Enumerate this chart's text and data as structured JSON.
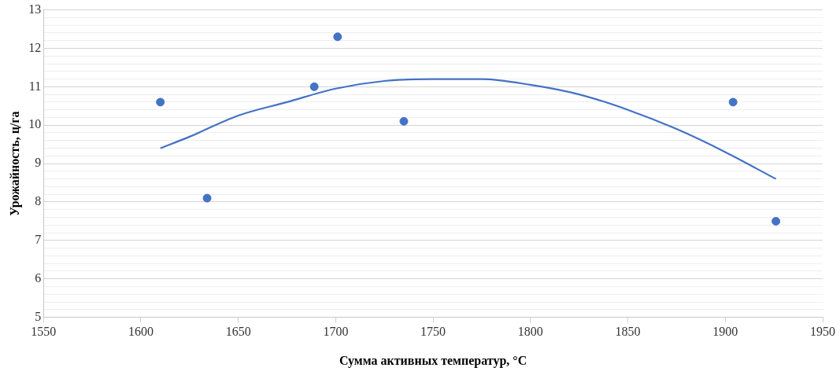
{
  "chart_data": {
    "type": "scatter",
    "xlabel": "Сумма активных температур, °C",
    "ylabel": "Урожайность, ц/га",
    "xlim": [
      1550,
      1950
    ],
    "xticks": [
      1550,
      1600,
      1650,
      1700,
      1750,
      1800,
      1850,
      1900,
      1950
    ],
    "ylim": [
      5,
      13
    ],
    "yticks": [
      5,
      {
        "value": 5.2,
        "label": null
      },
      {
        "value": 5.4,
        "label": null
      },
      {
        "value": 5.6,
        "label": null
      },
      {
        "value": 5.8,
        "label": null
      },
      6,
      {
        "value": 6.2,
        "label": null
      },
      {
        "value": 6.4,
        "label": null
      },
      {
        "value": 6.6,
        "label": null
      },
      {
        "value": 6.8,
        "label": null
      },
      7,
      {
        "value": 7.2,
        "label": null
      },
      {
        "value": 7.4,
        "label": null
      },
      {
        "value": 7.6,
        "label": null
      },
      {
        "value": 7.8,
        "label": null
      },
      8,
      {
        "value": 8.2,
        "label": null
      },
      {
        "value": 8.4,
        "label": null
      },
      {
        "value": 8.6,
        "label": null
      },
      {
        "value": 8.8,
        "label": null
      },
      9,
      {
        "value": 9.2,
        "label": null
      },
      {
        "value": 9.4,
        "label": null
      },
      {
        "value": 9.6,
        "label": null
      },
      {
        "value": 9.8,
        "label": null
      },
      10,
      {
        "value": 10.2,
        "label": null
      },
      {
        "value": 10.4,
        "label": null
      },
      {
        "value": 10.6,
        "label": null
      },
      {
        "value": 10.8,
        "label": null
      },
      11,
      {
        "value": 11.2,
        "label": null
      },
      {
        "value": 11.4,
        "label": null
      },
      {
        "value": 11.6,
        "label": null
      },
      {
        "value": 11.8,
        "label": null
      },
      12,
      {
        "value": 12.2,
        "label": null
      },
      {
        "value": 12.4,
        "label": null
      },
      {
        "value": 12.6,
        "label": null
      },
      {
        "value": 12.8,
        "label": null
      },
      13
    ],
    "grid": "y",
    "legend": false,
    "marker": "circle",
    "series": [
      {
        "color": "#4472c4",
        "x": [
          1610,
          1634,
          1689,
          1701,
          1735,
          1904,
          1926
        ],
        "values": [
          10.6,
          8.1,
          11.0,
          12.3,
          10.1,
          10.6,
          7.5
        ]
      },
      {
        "type": "line",
        "color": "#4472c4",
        "marker": "none",
        "line_style": "solid",
        "x": [
          1610,
          1625,
          1650,
          1675,
          1700,
          1725,
          1750,
          1775,
          1800,
          1825,
          1850,
          1875,
          1900,
          1926
        ],
        "values": [
          9.4,
          9.7,
          10.25,
          10.6,
          10.95,
          11.15,
          11.2,
          11.2,
          11.05,
          10.8,
          10.4,
          9.9,
          9.3,
          8.6
        ]
      }
    ]
  }
}
